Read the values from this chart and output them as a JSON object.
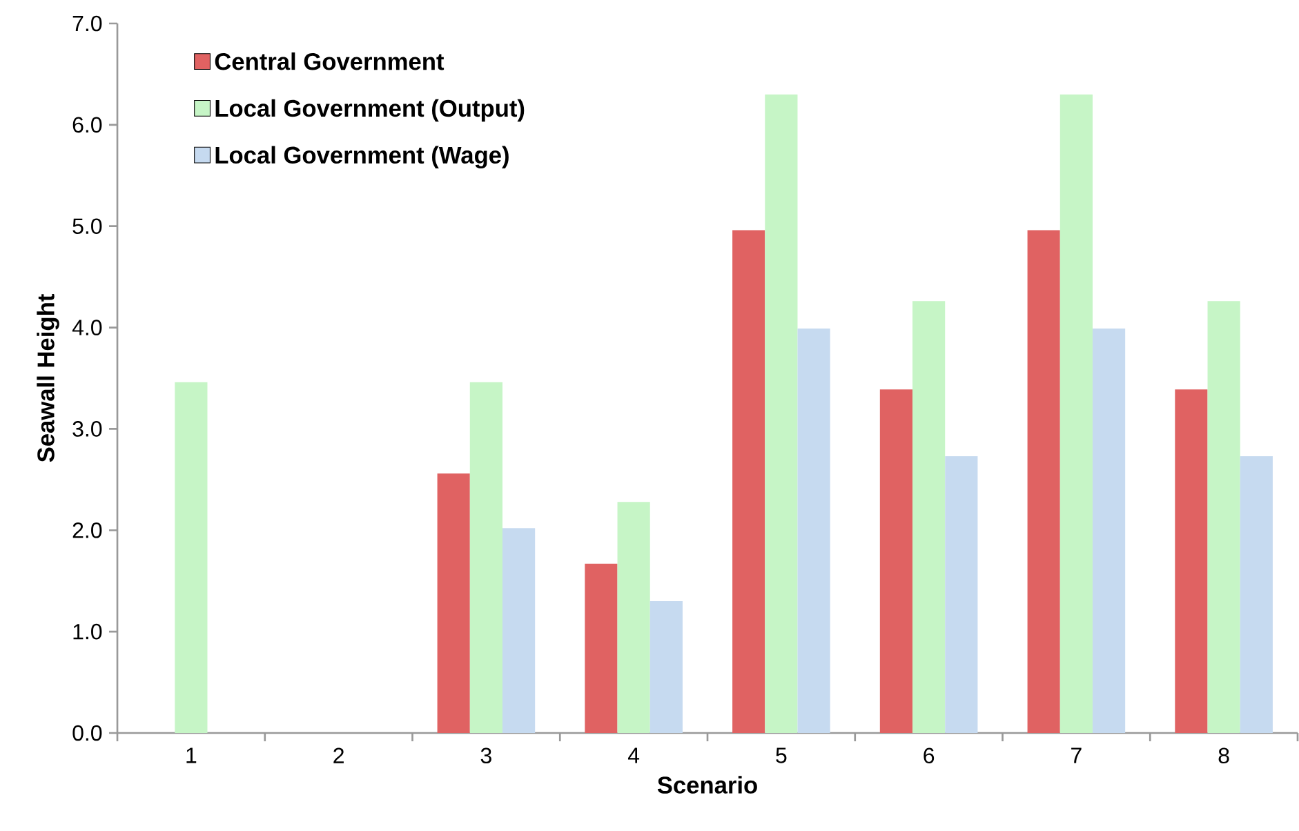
{
  "chart_data": {
    "type": "bar",
    "xlabel": "Scenario",
    "ylabel": "Seawall Height",
    "categories": [
      "1",
      "2",
      "3",
      "4",
      "5",
      "6",
      "7",
      "8"
    ],
    "series": [
      {
        "name": "Central Government",
        "color": "#e06262",
        "values": [
          0,
          0,
          2.56,
          1.67,
          4.96,
          3.39,
          4.96,
          3.39
        ]
      },
      {
        "name": "Local Government (Output)",
        "color": "#c6f5c6",
        "values": [
          3.46,
          0,
          3.46,
          2.28,
          6.3,
          4.26,
          6.3,
          4.26
        ]
      },
      {
        "name": "Local Government (Wage)",
        "color": "#c6daf0",
        "values": [
          0,
          0,
          2.02,
          1.3,
          3.99,
          2.73,
          3.99,
          2.73
        ]
      }
    ],
    "ylim": [
      0,
      7
    ],
    "yticks": [
      {
        "value": 0,
        "label": "0.0"
      },
      {
        "value": 1,
        "label": "1.0"
      },
      {
        "value": 2,
        "label": "2.0"
      },
      {
        "value": 3,
        "label": "3.0"
      },
      {
        "value": 4,
        "label": "4.0"
      },
      {
        "value": 5,
        "label": "5.0"
      },
      {
        "value": 6,
        "label": "6.0"
      },
      {
        "value": 7,
        "label": "7.0"
      }
    ],
    "legend": "top left",
    "grid": false
  }
}
